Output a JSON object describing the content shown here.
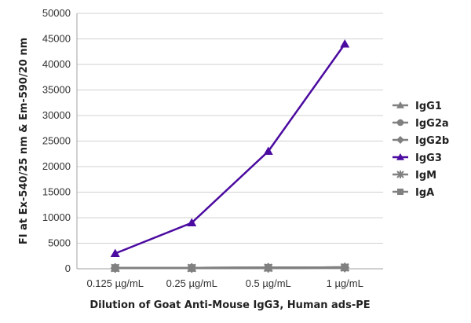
{
  "chart_data": {
    "type": "line",
    "categories": [
      "0.125 µg/mL",
      "0.25 µg/mL",
      "0.5 µg/mL",
      "1 µg/mL"
    ],
    "ylim": [
      0,
      50000
    ],
    "yticks": [
      0,
      5000,
      10000,
      15000,
      20000,
      25000,
      30000,
      35000,
      40000,
      45000,
      50000
    ],
    "ylabel": "FI at Ex-540/25 nm & Em-590/20 nm",
    "xlabel": "Dilution of Goat Anti-Mouse IgG3, Human ads-PE",
    "grid": "horizontal",
    "legend_position": "right",
    "series": [
      {
        "name": "IgG1",
        "marker": "triangle",
        "color": "#808080",
        "values": [
          150,
          150,
          200,
          250
        ]
      },
      {
        "name": "IgG2a",
        "marker": "circle",
        "color": "#808080",
        "values": [
          150,
          150,
          200,
          250
        ]
      },
      {
        "name": "IgG2b",
        "marker": "diamond",
        "color": "#808080",
        "values": [
          150,
          150,
          200,
          250
        ]
      },
      {
        "name": "IgG3",
        "marker": "triangle",
        "color": "#4b0aa0",
        "values": [
          3000,
          9000,
          23000,
          44000
        ]
      },
      {
        "name": "IgM",
        "marker": "star",
        "color": "#808080",
        "values": [
          150,
          150,
          200,
          250
        ]
      },
      {
        "name": "IgA",
        "marker": "square",
        "color": "#808080",
        "values": [
          150,
          150,
          200,
          250
        ]
      }
    ]
  }
}
